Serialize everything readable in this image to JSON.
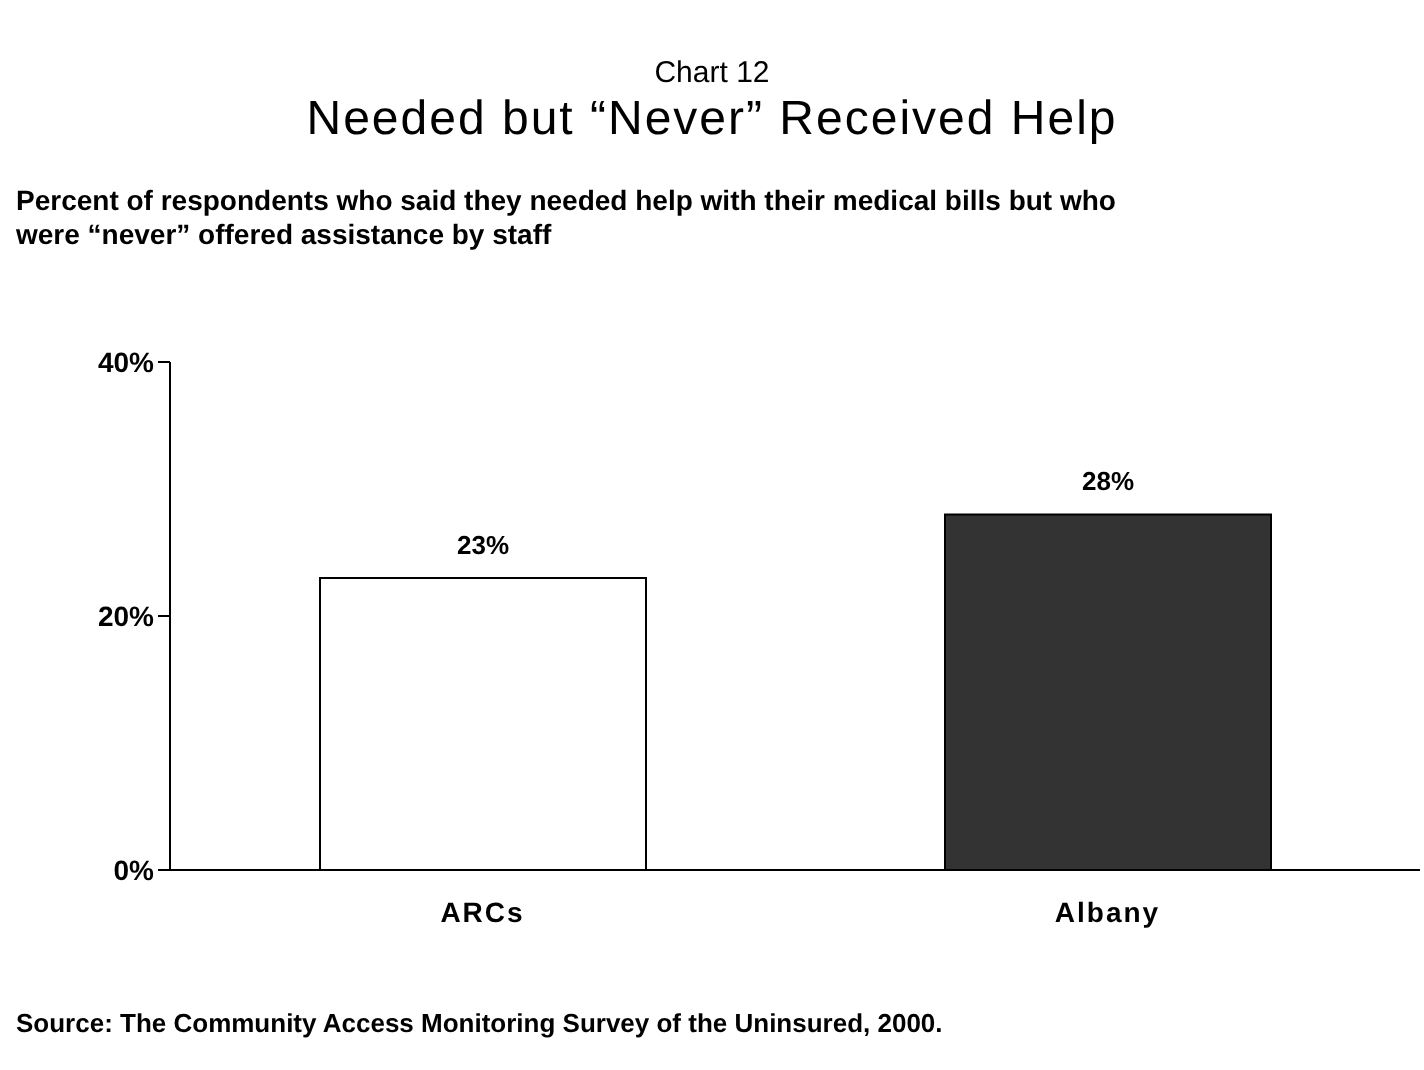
{
  "chart_data": {
    "type": "bar",
    "title": "Chart 12",
    "subtitle": "Needed but “Never” Received Help",
    "ylabel": "Percent of respondents who said they needed help with their medical bills but who were “never” offered assistance by staff",
    "categories": [
      "ARCs",
      "Albany"
    ],
    "values": [
      23,
      28
    ],
    "colors": [
      "#ffffff",
      "#333333"
    ],
    "value_labels": [
      "23%",
      "28%"
    ],
    "ylim": [
      0,
      40
    ],
    "yticks": [
      {
        "value": 0,
        "label": "0%"
      },
      {
        "value": 20,
        "label": "20%"
      },
      {
        "value": 40,
        "label": "40%"
      }
    ],
    "annotations": [
      "Source: The Community Access Monitoring Survey of the Uninsured, 2000."
    ]
  }
}
